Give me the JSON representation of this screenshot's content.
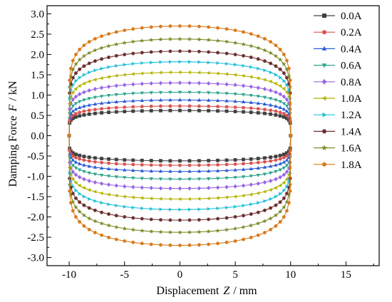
{
  "chart_data": {
    "type": "line",
    "title": "",
    "xlabel": {
      "prefix": "Displacement",
      "var": "Z",
      "unit": "/ mm"
    },
    "ylabel": {
      "prefix": "Damping Force",
      "var": "F",
      "unit": "/ kN"
    },
    "xlim": [
      -12,
      18
    ],
    "ylim": [
      -3.2,
      3.2
    ],
    "xticks": [
      -10,
      -5,
      0,
      5,
      10,
      15
    ],
    "xtick_labels": [
      "-10",
      "-5",
      "0",
      "5",
      "10",
      "15"
    ],
    "yticks": [
      -3.0,
      -2.5,
      -2.0,
      -1.5,
      -1.0,
      -0.5,
      0.0,
      0.5,
      1.0,
      1.5,
      2.0,
      2.5,
      3.0
    ],
    "ytick_labels": [
      "-3.0",
      "-2.5",
      "-2.0",
      "-1.5",
      "-1.0",
      "-0.5",
      "0.0",
      "0.5",
      "1.0",
      "1.5",
      "2.0",
      "2.5",
      "3.0"
    ],
    "grid": false,
    "legend_position": "top-right",
    "amplitude_mm": 10,
    "series": [
      {
        "name": "0.0A",
        "peak_force_kN": 0.62,
        "color": "#404040",
        "marker": "square"
      },
      {
        "name": "0.2A",
        "peak_force_kN": 0.73,
        "color": "#d9534f",
        "marker": "circle"
      },
      {
        "name": "0.4A",
        "peak_force_kN": 0.88,
        "color": "#2a5bd7",
        "marker": "triangle-up"
      },
      {
        "name": "0.6A",
        "peak_force_kN": 1.07,
        "color": "#2ca58d",
        "marker": "triangle-down"
      },
      {
        "name": "0.8A",
        "peak_force_kN": 1.3,
        "color": "#9966e6",
        "marker": "diamond"
      },
      {
        "name": "1.0A",
        "peak_force_kN": 1.56,
        "color": "#b4b400",
        "marker": "triangle-left"
      },
      {
        "name": "1.2A",
        "peak_force_kN": 1.82,
        "color": "#20c0d8",
        "marker": "triangle-right"
      },
      {
        "name": "1.4A",
        "peak_force_kN": 2.08,
        "color": "#6e2f2f",
        "marker": "hexagon"
      },
      {
        "name": "1.6A",
        "peak_force_kN": 2.38,
        "color": "#7d8c2a",
        "marker": "star"
      },
      {
        "name": "1.8A",
        "peak_force_kN": 2.7,
        "color": "#d97a1a",
        "marker": "circle"
      }
    ]
  }
}
